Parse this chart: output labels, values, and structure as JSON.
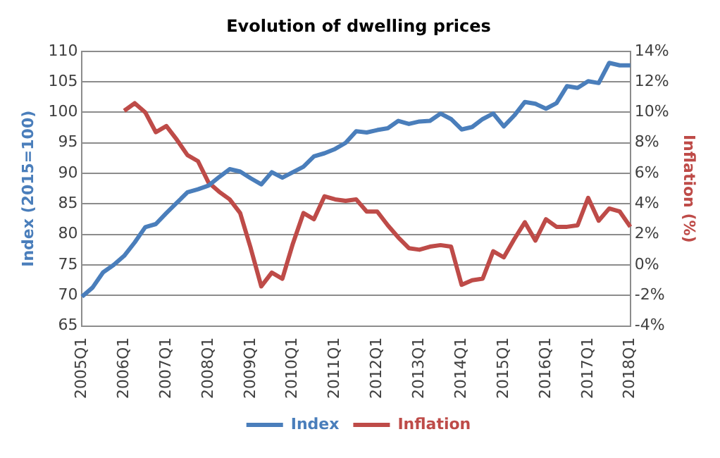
{
  "chart_data": {
    "type": "line",
    "title": "Evolution of dwelling prices",
    "ylabel": "Index (2015=100)",
    "y2label": "Inflation (%)",
    "categories": [
      "2005Q1",
      null,
      null,
      null,
      "2006Q1",
      null,
      null,
      null,
      "2007Q1",
      null,
      null,
      null,
      "2008Q1",
      null,
      null,
      null,
      "2009Q1",
      null,
      null,
      null,
      "2010Q1",
      null,
      null,
      null,
      "2011Q1",
      null,
      null,
      null,
      "2012Q1",
      null,
      null,
      null,
      "2013Q1",
      null,
      null,
      null,
      "2014Q1",
      null,
      null,
      null,
      "2015Q1",
      null,
      null,
      null,
      "2016Q1",
      null,
      null,
      null,
      "2017Q1",
      null,
      null,
      null,
      "2018Q1"
    ],
    "series": [
      {
        "name": "Index",
        "color": "#4a7ebb",
        "values": [
          69.8,
          71.3,
          73.8,
          75,
          76.5,
          78.7,
          81.2,
          81.7,
          83.5,
          85.2,
          86.9,
          87.4,
          88,
          89.4,
          90.7,
          90.3,
          89.2,
          88.2,
          90.2,
          89.3,
          90.2,
          91.1,
          92.8,
          93.3,
          94,
          95,
          96.9,
          96.7,
          97.1,
          97.4,
          98.6,
          98.1,
          98.5,
          98.6,
          99.8,
          98.9,
          97.2,
          97.6,
          98.9,
          99.8,
          97.7,
          99.5,
          101.7,
          101.4,
          100.6,
          101.5,
          104.3,
          104,
          105.1,
          104.8,
          108.1,
          107.7,
          107.7
        ]
      },
      {
        "name": "Inflation",
        "color": "#be4b48",
        "axis": "y2",
        "values": [
          null,
          null,
          null,
          null,
          10.1,
          10.6,
          10.0,
          8.7,
          9.1,
          8.2,
          7.2,
          6.8,
          5.4,
          4.8,
          4.3,
          3.4,
          1.1,
          -1.4,
          -0.5,
          -0.9,
          1.4,
          3.4,
          3.0,
          4.5,
          4.3,
          4.2,
          4.3,
          3.5,
          3.5,
          2.6,
          1.8,
          1.1,
          1.0,
          1.2,
          1.3,
          1.2,
          -1.3,
          -1.0,
          -0.9,
          0.9,
          0.5,
          1.7,
          2.8,
          1.6,
          3.0,
          2.5,
          2.5,
          2.6,
          4.4,
          2.9,
          3.7,
          3.5,
          2.5
        ]
      }
    ],
    "ylim": [
      65,
      110
    ],
    "yticks": [
      65,
      70,
      75,
      80,
      85,
      90,
      95,
      100,
      105,
      110
    ],
    "y2lim": [
      -4,
      14
    ],
    "y2ticks": [
      {
        "value": -4,
        "label": "-4%"
      },
      {
        "value": -2,
        "label": "-2%"
      },
      {
        "value": 0,
        "label": "0%"
      },
      {
        "value": 2,
        "label": "2%"
      },
      {
        "value": 4,
        "label": "4%"
      },
      {
        "value": 6,
        "label": "6%"
      },
      {
        "value": 8,
        "label": "8%"
      },
      {
        "value": 10,
        "label": "10%"
      },
      {
        "value": 12,
        "label": "12%"
      },
      {
        "value": 14,
        "label": "14%"
      }
    ],
    "grid": "y",
    "legend": "bottom",
    "marker": "none",
    "line_style": "solid"
  }
}
